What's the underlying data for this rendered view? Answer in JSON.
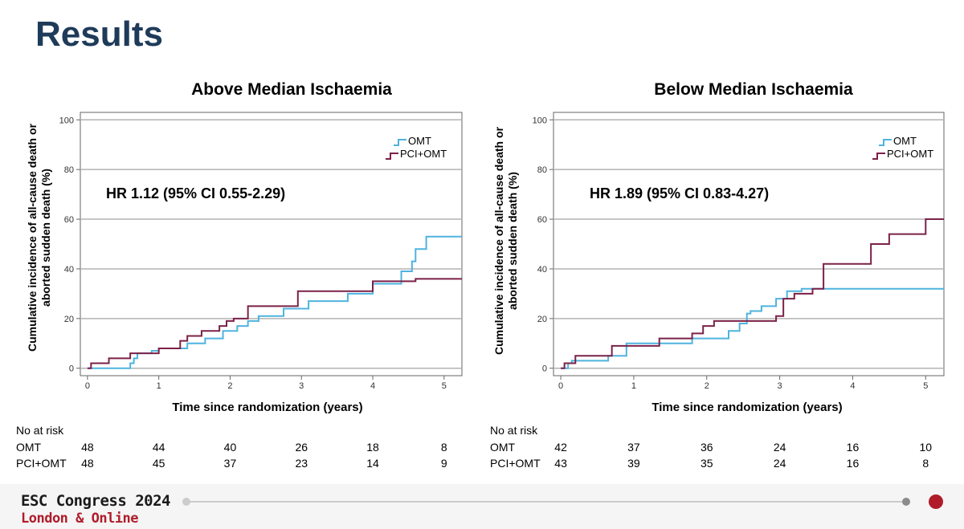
{
  "slide": {
    "title": "Results"
  },
  "chart_data": [
    {
      "type": "line",
      "step": true,
      "title": "Above Median Ischaemia",
      "xlabel": "Time since randomization (years)",
      "ylabel_lines": [
        "Cumulative incidence of all-cause death or",
        "aborted sudden death (%)"
      ],
      "xlim": [
        -0.1,
        5.25
      ],
      "ylim": [
        -3,
        103
      ],
      "x_ticks": [
        0,
        1,
        2,
        3,
        4,
        5
      ],
      "y_ticks": [
        0,
        20,
        40,
        60,
        80,
        100
      ],
      "gridlines": [
        0,
        20,
        40,
        60,
        80,
        100
      ],
      "annotation": "HR 1.12 (95% CI 0.55-2.29)",
      "legend": {
        "position": "top-right"
      },
      "series": [
        {
          "name": "OMT",
          "color": "#4fb3df",
          "x": [
            0,
            0.6,
            0.65,
            0.7,
            0.9,
            1.0,
            1.15,
            1.3,
            1.4,
            1.65,
            1.9,
            2.1,
            2.25,
            2.4,
            2.75,
            3.1,
            3.65,
            3.9,
            4.0,
            4.4,
            4.55,
            4.6,
            4.65,
            4.75,
            5.25
          ],
          "y": [
            0,
            2,
            4,
            6,
            7,
            8,
            8,
            8,
            10,
            12,
            15,
            17,
            19,
            21,
            24,
            27,
            30,
            30,
            34,
            39,
            43,
            48,
            48,
            53,
            53
          ]
        },
        {
          "name": "PCI+OMT",
          "color": "#7b2148",
          "x": [
            0,
            0.05,
            0.3,
            0.6,
            1.0,
            1.3,
            1.4,
            1.6,
            1.85,
            1.95,
            2.05,
            2.25,
            2.4,
            2.95,
            3.05,
            3.85,
            4.0,
            4.45,
            4.6,
            5.25
          ],
          "y": [
            0,
            2,
            4,
            6,
            8,
            11,
            13,
            15,
            17,
            19,
            20,
            25,
            25,
            31,
            31,
            31,
            35,
            35,
            36,
            36
          ]
        }
      ],
      "at_risk": {
        "label": "No at risk",
        "rows": [
          {
            "name": "OMT",
            "values": [
              48,
              44,
              40,
              26,
              18,
              8
            ]
          },
          {
            "name": "PCI+OMT",
            "values": [
              48,
              45,
              37,
              23,
              14,
              9
            ]
          }
        ]
      }
    },
    {
      "type": "line",
      "step": true,
      "title": "Below Median Ischaemia",
      "xlabel": "Time since randomization (years)",
      "ylabel_lines": [
        "Cumulative incidence of all-cause death or",
        "aborted sudden death (%)"
      ],
      "xlim": [
        -0.1,
        5.25
      ],
      "ylim": [
        -3,
        103
      ],
      "x_ticks": [
        0,
        1,
        2,
        3,
        4,
        5
      ],
      "y_ticks": [
        0,
        20,
        40,
        60,
        80,
        100
      ],
      "gridlines": [
        0,
        20,
        40,
        60,
        80,
        100
      ],
      "annotation": "HR 1.89 (95% CI 0.83-4.27)",
      "legend": {
        "position": "top-right"
      },
      "series": [
        {
          "name": "OMT",
          "color": "#4fb3df",
          "x": [
            0,
            0.1,
            0.15,
            0.65,
            0.9,
            1.8,
            2.3,
            2.45,
            2.55,
            2.6,
            2.75,
            2.95,
            3.1,
            3.3,
            5.25
          ],
          "y": [
            0,
            2,
            3,
            5,
            10,
            12,
            15,
            18,
            22,
            23,
            25,
            28,
            31,
            32,
            32
          ]
        },
        {
          "name": "PCI+OMT",
          "color": "#7b2148",
          "x": [
            0,
            0.05,
            0.2,
            0.7,
            1.35,
            1.8,
            1.95,
            2.1,
            2.6,
            2.95,
            3.05,
            3.2,
            3.45,
            3.6,
            4.25,
            4.5,
            5.0,
            5.25
          ],
          "y": [
            0,
            2,
            5,
            9,
            12,
            14,
            17,
            19,
            19,
            21,
            28,
            30,
            32,
            42,
            50,
            54,
            60,
            60
          ]
        }
      ],
      "at_risk": {
        "label": "No at risk",
        "rows": [
          {
            "name": "OMT",
            "values": [
              42,
              37,
              36,
              24,
              16,
              10
            ]
          },
          {
            "name": "PCI+OMT",
            "values": [
              43,
              39,
              35,
              24,
              16,
              8
            ]
          }
        ]
      }
    }
  ],
  "footer": {
    "conference": "ESC Congress 2024",
    "location": "London & Online",
    "colors": {
      "track": "#cccccc",
      "dot_grey": "#8c8c8c",
      "dot_active": "#b01c2a"
    }
  }
}
